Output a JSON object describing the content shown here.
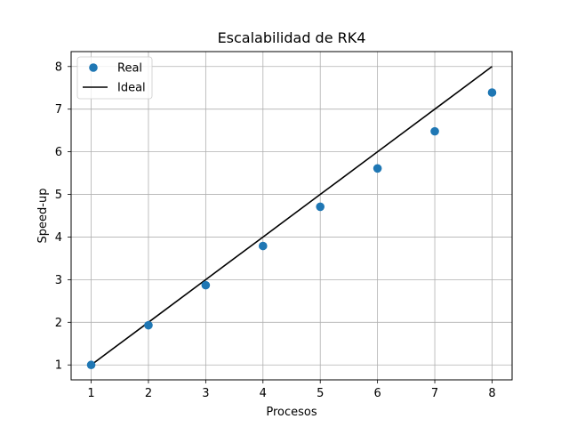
{
  "chart_data": {
    "type": "scatter",
    "title": "Escalabilidad de RK4",
    "xlabel": "Procesos",
    "ylabel": "Speed-up",
    "xlim": [
      0.65,
      8.35
    ],
    "ylim": [
      0.65,
      8.35
    ],
    "xticks": [
      1,
      2,
      3,
      4,
      5,
      6,
      7,
      8
    ],
    "yticks": [
      1,
      2,
      3,
      4,
      5,
      6,
      7,
      8
    ],
    "grid": true,
    "legend_position": "top-left",
    "series": [
      {
        "name": "Real",
        "kind": "scatter",
        "color": "#1f77b4",
        "x": [
          1,
          2,
          3,
          4,
          5,
          6,
          7,
          8
        ],
        "y": [
          1.0,
          1.93,
          2.87,
          3.79,
          4.71,
          5.61,
          6.48,
          7.39
        ]
      },
      {
        "name": "Ideal",
        "kind": "line",
        "color": "#000000",
        "x": [
          1,
          2,
          3,
          4,
          5,
          6,
          7,
          8
        ],
        "y": [
          1,
          2,
          3,
          4,
          5,
          6,
          7,
          8
        ]
      }
    ]
  }
}
